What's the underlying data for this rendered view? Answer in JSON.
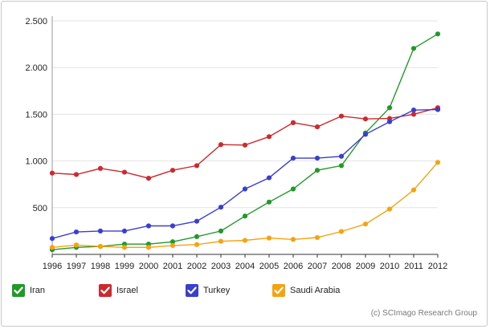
{
  "chart_data": {
    "type": "line",
    "title": "",
    "xlabel": "",
    "ylabel": "",
    "x": [
      "1996",
      "1997",
      "1998",
      "1999",
      "2000",
      "2001",
      "2002",
      "2003",
      "2004",
      "2005",
      "2006",
      "2007",
      "2008",
      "2009",
      "2010",
      "2011",
      "2012"
    ],
    "ylim": [
      0,
      2500
    ],
    "yticks": [
      "500",
      "1.000",
      "1.500",
      "2.000",
      "2.500"
    ],
    "ytick_values": [
      500,
      1000,
      1500,
      2000,
      2500
    ],
    "grid": "horizontal",
    "legend_position": "bottom",
    "series": [
      {
        "name": "Iran",
        "color": "#22992a",
        "values": [
          50,
          75,
          85,
          110,
          110,
          135,
          190,
          250,
          410,
          560,
          700,
          900,
          950,
          1300,
          1570,
          2205,
          2360
        ]
      },
      {
        "name": "Israel",
        "color": "#cc2a2f",
        "values": [
          870,
          855,
          920,
          880,
          815,
          900,
          950,
          1175,
          1170,
          1260,
          1410,
          1365,
          1480,
          1450,
          1455,
          1500,
          1570
        ]
      },
      {
        "name": "Turkey",
        "color": "#3a3fcc",
        "values": [
          170,
          240,
          250,
          250,
          305,
          305,
          355,
          505,
          700,
          820,
          1030,
          1030,
          1050,
          1285,
          1420,
          1545,
          1550
        ]
      },
      {
        "name": "Saudi Arabia",
        "color": "#f5a30f",
        "values": [
          75,
          100,
          85,
          75,
          75,
          95,
          105,
          140,
          150,
          175,
          160,
          180,
          245,
          325,
          485,
          690,
          985
        ]
      }
    ]
  },
  "legend_icon": "checkbox-check-icon",
  "credit": "(c) SCImago Research Group"
}
